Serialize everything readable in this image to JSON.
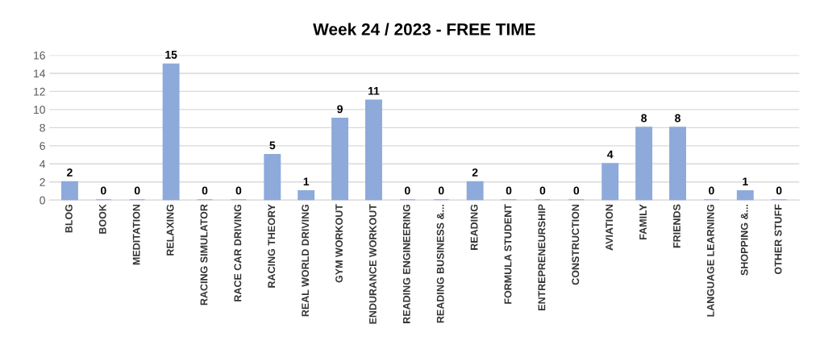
{
  "chart_data": {
    "type": "bar",
    "title": "Week 24 / 2023 - FREE TIME",
    "categories": [
      "BLOG",
      "BOOK",
      "MEDITATION",
      "RELAXING",
      "RACING SIMULATOR",
      "RACE CAR DRIVING",
      "RACING THEORY",
      "REAL WORLD DRIVING",
      "GYM WORKOUT",
      "ENDURANCE WORKOUT",
      "READING ENGINEERING",
      "READING BUSINESS &...",
      "READING",
      "FORMULA STUDENT",
      "ENTREPRENEURSHIP",
      "CONSTRUCTION",
      "AVIATION",
      "FAMILY",
      "FRIENDS",
      "LANGUAGE LEARNING",
      "SHOPPING &...",
      "OTHER STUFF"
    ],
    "values": [
      2,
      0,
      0,
      15,
      0,
      0,
      5,
      1,
      9,
      11,
      0,
      0,
      2,
      0,
      0,
      0,
      4,
      8,
      8,
      0,
      1,
      0
    ],
    "color": "#8eaadb",
    "ylim": [
      0,
      16
    ],
    "yticks": [
      0,
      2,
      4,
      6,
      8,
      10,
      12,
      14,
      16
    ],
    "grid": "y",
    "data_labels": true,
    "legend": false
  }
}
